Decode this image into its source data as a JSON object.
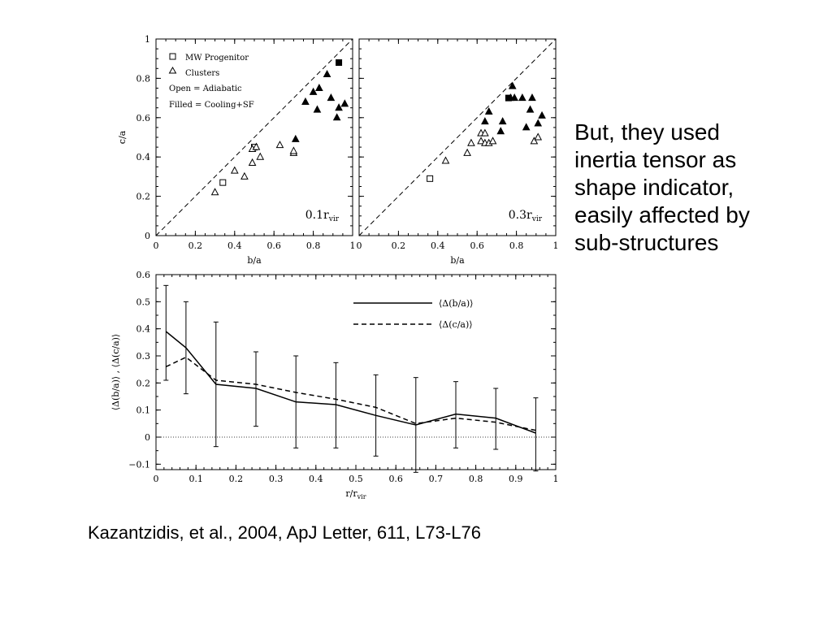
{
  "side_note": {
    "lines": [
      "But, they used",
      "inertia tensor as",
      "shape indicator,",
      "easily affected by",
      "sub-structures"
    ]
  },
  "citation": "Kazantzidis, et al., 2004, ApJ Letter, 611, L73-L76",
  "chart_data": [
    {
      "type": "scatter",
      "panel_label": "0.1r",
      "panel_label_sub": "vir",
      "xlabel": "b/a",
      "ylabel": "c/a",
      "xlim": [
        0,
        1
      ],
      "ylim": [
        0,
        1
      ],
      "xticks": [
        "0",
        "0.2",
        "0.4",
        "0.6",
        "0.8",
        "1"
      ],
      "yticks": [
        "0",
        "0.2",
        "0.4",
        "0.6",
        "0.8",
        "1"
      ],
      "reference_line": "y = x (dashed)",
      "legend": {
        "position": "top-left",
        "entries": [
          "MW Progenitor",
          "Clusters",
          "Open = Adiabatic",
          "Filled = Cooling+SF"
        ]
      },
      "series": [
        {
          "name": "MW Progenitor",
          "marker": "square",
          "filled": false,
          "points": [
            [
              0.34,
              0.27
            ],
            [
              0.5,
              0.45
            ]
          ]
        },
        {
          "name": "MW Progenitor",
          "marker": "square",
          "filled": true,
          "points": [
            [
              0.93,
              0.88
            ]
          ]
        },
        {
          "name": "Clusters",
          "marker": "triangle",
          "filled": false,
          "points": [
            [
              0.3,
              0.22
            ],
            [
              0.4,
              0.33
            ],
            [
              0.45,
              0.3
            ],
            [
              0.49,
              0.37
            ],
            [
              0.49,
              0.44
            ],
            [
              0.51,
              0.45
            ],
            [
              0.53,
              0.4
            ],
            [
              0.63,
              0.46
            ],
            [
              0.7,
              0.42
            ],
            [
              0.7,
              0.43
            ]
          ]
        },
        {
          "name": "Clusters",
          "marker": "triangle",
          "filled": true,
          "points": [
            [
              0.71,
              0.49
            ],
            [
              0.76,
              0.68
            ],
            [
              0.8,
              0.73
            ],
            [
              0.82,
              0.64
            ],
            [
              0.83,
              0.75
            ],
            [
              0.87,
              0.82
            ],
            [
              0.89,
              0.7
            ],
            [
              0.92,
              0.6
            ],
            [
              0.93,
              0.65
            ],
            [
              0.96,
              0.67
            ]
          ]
        }
      ]
    },
    {
      "type": "scatter",
      "panel_label": "0.3r",
      "panel_label_sub": "vir",
      "xlabel": "b/a",
      "ylabel": "",
      "xlim": [
        0,
        1
      ],
      "ylim": [
        0,
        1
      ],
      "xticks": [
        "0",
        "0.2",
        "0.4",
        "0.6",
        "0.8",
        "1"
      ],
      "reference_line": "y = x (dashed)",
      "series": [
        {
          "name": "MW Progenitor",
          "marker": "square",
          "filled": false,
          "points": [
            [
              0.36,
              0.29
            ]
          ]
        },
        {
          "name": "MW Progenitor",
          "marker": "square",
          "filled": true,
          "points": [
            [
              0.76,
              0.7
            ]
          ]
        },
        {
          "name": "Clusters",
          "marker": "triangle",
          "filled": false,
          "points": [
            [
              0.44,
              0.38
            ],
            [
              0.55,
              0.42
            ],
            [
              0.57,
              0.47
            ],
            [
              0.62,
              0.48
            ],
            [
              0.62,
              0.52
            ],
            [
              0.64,
              0.52
            ],
            [
              0.64,
              0.47
            ],
            [
              0.66,
              0.47
            ],
            [
              0.68,
              0.48
            ],
            [
              0.89,
              0.48
            ],
            [
              0.91,
              0.5
            ]
          ]
        },
        {
          "name": "Clusters",
          "marker": "triangle",
          "filled": true,
          "points": [
            [
              0.64,
              0.58
            ],
            [
              0.66,
              0.63
            ],
            [
              0.72,
              0.53
            ],
            [
              0.73,
              0.58
            ],
            [
              0.77,
              0.7
            ],
            [
              0.78,
              0.76
            ],
            [
              0.79,
              0.7
            ],
            [
              0.83,
              0.7
            ],
            [
              0.85,
              0.55
            ],
            [
              0.87,
              0.64
            ],
            [
              0.88,
              0.7
            ],
            [
              0.91,
              0.57
            ],
            [
              0.93,
              0.61
            ]
          ]
        }
      ]
    },
    {
      "type": "line",
      "xlabel": "r/r",
      "xlabel_sub": "vir",
      "ylabel": "⟨Δ(b/a)⟩ , ⟨Δ(c/a)⟩",
      "xlim": [
        0,
        1
      ],
      "ylim": [
        -0.12,
        0.6
      ],
      "xticks": [
        "0",
        "0.1",
        "0.2",
        "0.3",
        "0.4",
        "0.5",
        "0.6",
        "0.7",
        "0.8",
        "0.9",
        "1"
      ],
      "yticks": [
        "−0.1",
        "0",
        "0.1",
        "0.2",
        "0.3",
        "0.4",
        "0.5",
        "0.6"
      ],
      "zero_line": "dotted",
      "legend": {
        "position": "top-right",
        "entries": [
          "⟨Δ(b/a)⟩",
          "⟨Δ(c/a)⟩"
        ]
      },
      "x": [
        0.025,
        0.075,
        0.15,
        0.25,
        0.35,
        0.45,
        0.55,
        0.65,
        0.75,
        0.85,
        0.95
      ],
      "series": [
        {
          "name": "⟨Δ(b/a)⟩",
          "style": "solid",
          "values": [
            0.39,
            0.33,
            0.195,
            0.18,
            0.13,
            0.12,
            0.08,
            0.045,
            0.085,
            0.07,
            0.015
          ]
        },
        {
          "name": "⟨Δ(c/a)⟩",
          "style": "dashed",
          "values": [
            0.26,
            0.295,
            0.21,
            0.195,
            0.165,
            0.14,
            0.11,
            0.05,
            0.07,
            0.055,
            0.025
          ]
        }
      ],
      "error_bars": {
        "x": [
          0.025,
          0.075,
          0.15,
          0.25,
          0.35,
          0.45,
          0.55,
          0.65,
          0.75,
          0.85,
          0.95
        ],
        "low": [
          0.21,
          0.16,
          -0.035,
          0.04,
          -0.04,
          -0.04,
          -0.07,
          -0.13,
          -0.04,
          -0.045,
          -0.125
        ],
        "high": [
          0.56,
          0.5,
          0.425,
          0.315,
          0.3,
          0.275,
          0.23,
          0.22,
          0.205,
          0.18,
          0.145
        ]
      }
    }
  ]
}
